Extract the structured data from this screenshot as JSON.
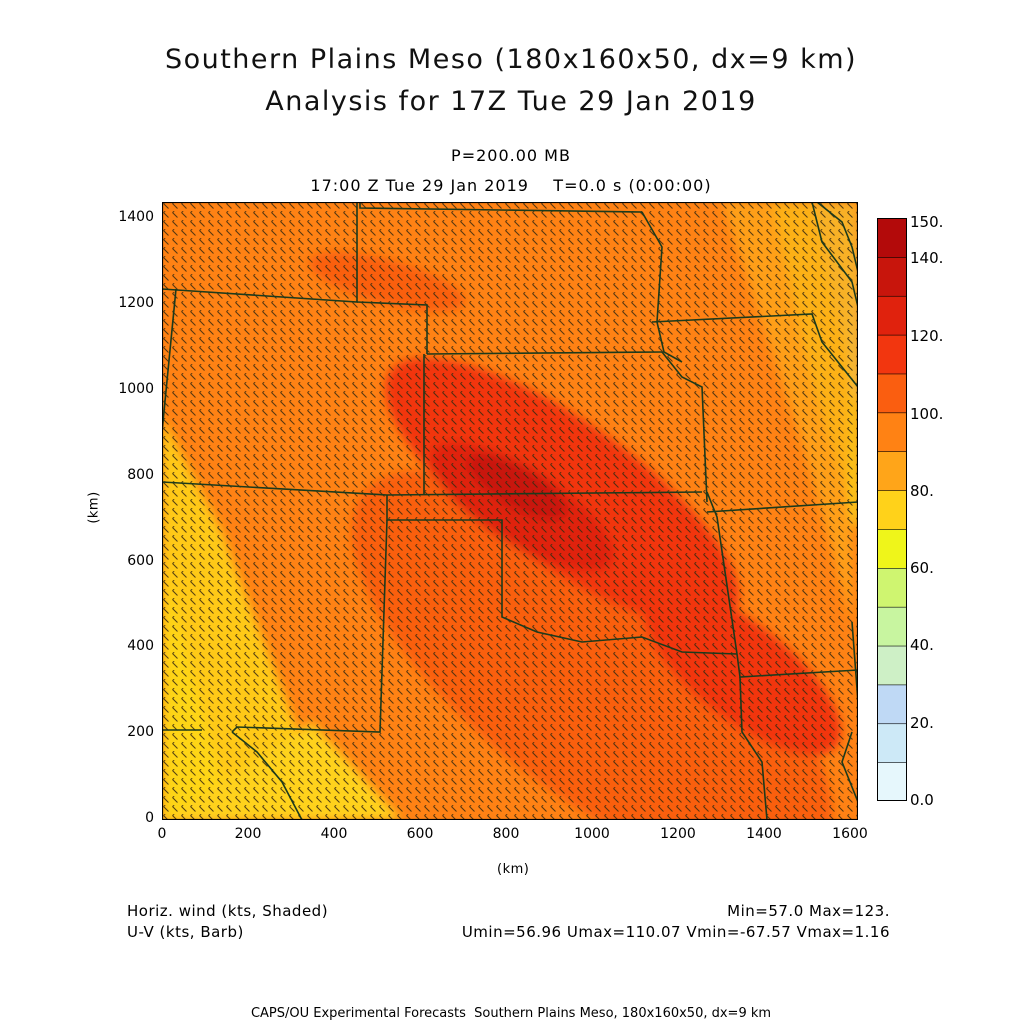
{
  "title_line1": "Southern Plains Meso (180x160x50, dx=9 km)",
  "title_line2": "Analysis for 17Z Tue 29 Jan 2019",
  "level_label": "P=200.00 MB",
  "time_label": "17:00 Z Tue 29 Jan 2019    T=0.0 s (0:00:00)",
  "chart_data": {
    "type": "heatmap",
    "xlabel": "(km)",
    "ylabel": "(km)",
    "xlim": [
      0,
      1620
    ],
    "ylim": [
      0,
      1440
    ],
    "x_ticks": [
      "0",
      "200",
      "400",
      "600",
      "800",
      "1000",
      "1200",
      "1400",
      "1600"
    ],
    "y_ticks": [
      "0",
      "200",
      "400",
      "600",
      "800",
      "1000",
      "1200",
      "1400"
    ],
    "field": "Horizontal wind speed (kts), shaded; U-V wind barbs",
    "jet_max_center_km": [
      860,
      720
    ],
    "colorbar": {
      "levels": [
        0,
        10,
        20,
        30,
        40,
        50,
        60,
        70,
        80,
        90,
        100,
        110,
        120,
        130,
        140,
        150
      ],
      "labels": [
        "0.0",
        "20.",
        "40.",
        "60.",
        "80.",
        "100.",
        "120.",
        "140.",
        "150."
      ],
      "colors": [
        "#e6f7fc",
        "#cde9f7",
        "#bfd9f5",
        "#cef0c6",
        "#c8f5a0",
        "#cff570",
        "#eff51a",
        "#ffd21a",
        "#ffa519",
        "#ff8214",
        "#fa5e10",
        "#f2360f",
        "#e0220d",
        "#c8150c",
        "#b30a0a"
      ]
    },
    "min": "57.0",
    "max": "123."
  },
  "legend_left_1": "Horiz. wind (kts, Shaded)",
  "legend_left_2": "U-V (kts, Barb)",
  "legend_right_1": "Min=57.0 Max=123.",
  "legend_right_2": "Umin=56.96 Umax=110.07 Vmin=-67.57 Vmax=1.16",
  "footer": "CAPS/OU Experimental Forecasts  Southern Plains Meso, 180x160x50, dx=9 km",
  "colors": {
    "boundary": "#1c3a1c",
    "barb": "#3a2a10",
    "frame": "#000000"
  }
}
